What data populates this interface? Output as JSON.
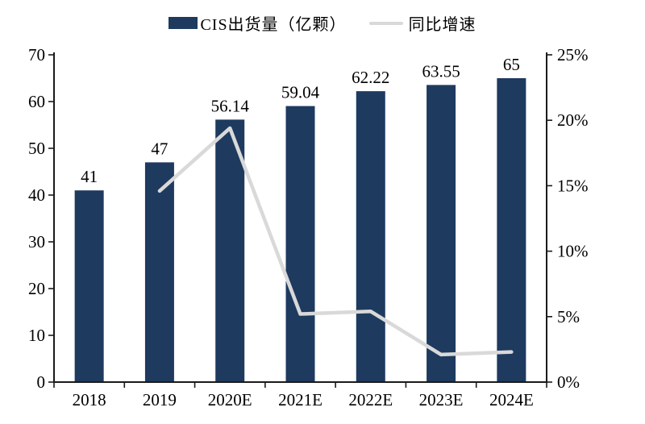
{
  "chart_data": {
    "type": "bar",
    "title": "",
    "categories": [
      "2018",
      "2019",
      "2020E",
      "2021E",
      "2022E",
      "2023E",
      "2024E"
    ],
    "series": [
      {
        "name": "CIS出货量（亿颗）",
        "type": "bar",
        "axis": "left",
        "values": [
          41,
          47,
          56.14,
          59.04,
          62.22,
          63.55,
          65
        ],
        "data_labels": [
          "41",
          "47",
          "56.14",
          "59.04",
          "62.22",
          "63.55",
          "65"
        ],
        "color": "#1e3a5f"
      },
      {
        "name": "同比增速",
        "type": "line",
        "axis": "right",
        "values": [
          null,
          14.6,
          19.4,
          5.2,
          5.4,
          2.1,
          2.3
        ],
        "color": "#d9d9d9"
      }
    ],
    "left_axis": {
      "min": 0,
      "max": 70,
      "step": 10,
      "tick_labels": [
        "0",
        "10",
        "20",
        "30",
        "40",
        "50",
        "60",
        "70"
      ]
    },
    "right_axis": {
      "min": 0,
      "max": 25,
      "step": 5,
      "tick_labels": [
        "0%",
        "5%",
        "10%",
        "15%",
        "20%",
        "25%"
      ]
    },
    "grid": false,
    "legend_position": "top",
    "background": "#ffffff",
    "axis_color": "#1a1a1a",
    "text_color": "#000000"
  }
}
